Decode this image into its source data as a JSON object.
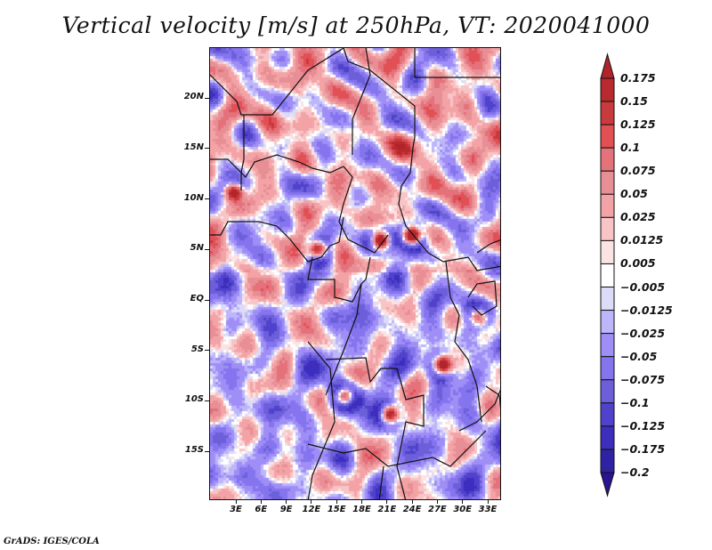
{
  "chart_data": {
    "type": "heatmap",
    "title": "Vertical velocity [m/s] at 250hPa, VT: 2020041000",
    "variable": "Vertical velocity",
    "units": "m/s",
    "level": "250hPa",
    "valid_time": "2020041000",
    "xlabel": "",
    "ylabel": "",
    "lon_range_deg": [
      0,
      35
    ],
    "lat_range_deg": [
      -20,
      25
    ],
    "x_ticks": [
      "3E",
      "6E",
      "9E",
      "12E",
      "15E",
      "18E",
      "21E",
      "24E",
      "27E",
      "30E",
      "33E"
    ],
    "x_tick_values": [
      3,
      6,
      9,
      12,
      15,
      18,
      21,
      24,
      27,
      30,
      33
    ],
    "y_ticks": [
      "20N",
      "15N",
      "10N",
      "5N",
      "EQ",
      "5S",
      "10S",
      "15S"
    ],
    "y_tick_values": [
      20,
      15,
      10,
      5,
      0,
      -5,
      -10,
      -15
    ],
    "colorbar": {
      "orientation": "vertical",
      "placement": "right",
      "extend": "both",
      "levels": [
        0.175,
        0.15,
        0.125,
        0.1,
        0.075,
        0.05,
        0.025,
        0.0125,
        0.005,
        -0.005,
        -0.0125,
        -0.025,
        -0.05,
        -0.075,
        -0.1,
        -0.125,
        -0.175,
        -0.2
      ],
      "labels": [
        "0.175",
        "0.15",
        "0.125",
        "0.1",
        "0.075",
        "0.05",
        "0.025",
        "0.0125",
        "0.005",
        "-0.005",
        "-0.0125",
        "-0.025",
        "-0.05",
        "-0.075",
        "-0.1",
        "-0.125",
        "-0.175",
        "-0.2"
      ],
      "colors": [
        "#b1242a",
        "#b72a2f",
        "#c83a3e",
        "#e05055",
        "#e5717a",
        "#e88f95",
        "#f3a3a6",
        "#f8c4c6",
        "#fbe3e4",
        "#ffffff",
        "#dcdcf8",
        "#bdb6fa",
        "#a08ef7",
        "#8474ee",
        "#6c5fd9",
        "#5142cd",
        "#3e2ebd",
        "#2f23a4",
        "#28158f"
      ]
    },
    "notes": "Gridded field over Central/West Africa with country borders; alternating red (ascent) and blue (descent) small-scale streaks; strongest updraft cells near 5-7N 18-27E and 8-10S 15-21E."
  },
  "credit": "GrADS: IGES/COLA"
}
